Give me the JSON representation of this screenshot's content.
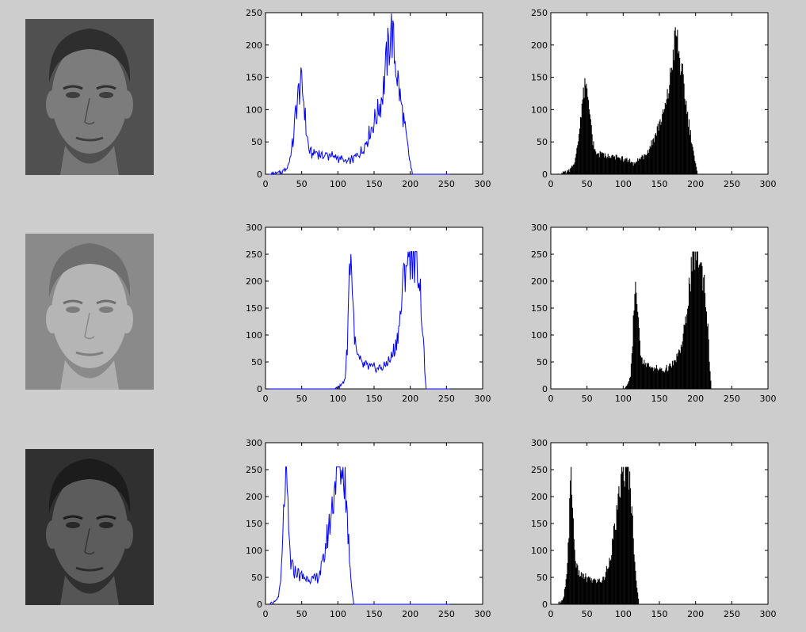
{
  "faces": [
    {
      "name": "face-normal",
      "tone": "#7c7c7c",
      "bg": "#505050",
      "hair": "#2e2e2e"
    },
    {
      "name": "face-bright",
      "tone": "#b5b5b5",
      "bg": "#8a8a8a",
      "hair": "#6e6e6e"
    },
    {
      "name": "face-dark",
      "tone": "#5c5c5c",
      "bg": "#303030",
      "hair": "#1c1c1c"
    }
  ],
  "colors": {
    "line": "#0000ff",
    "bar": "#000000"
  },
  "chart_data": [
    {
      "type": "line",
      "row": 0,
      "col": 0,
      "xlim": [
        0,
        300
      ],
      "ylim": [
        0,
        250
      ],
      "xticks": [
        0,
        50,
        100,
        150,
        200,
        250,
        300
      ],
      "yticks": [
        0,
        50,
        100,
        150,
        200,
        250
      ],
      "peaks": [
        [
          8,
          0
        ],
        [
          15,
          1
        ],
        [
          22,
          3
        ],
        [
          28,
          8
        ],
        [
          33,
          20
        ],
        [
          38,
          50
        ],
        [
          42,
          100
        ],
        [
          46,
          130
        ],
        [
          48,
          140
        ],
        [
          50,
          133
        ],
        [
          53,
          115
        ],
        [
          56,
          70
        ],
        [
          60,
          38
        ],
        [
          64,
          32
        ],
        [
          70,
          33
        ],
        [
          80,
          30
        ],
        [
          90,
          28
        ],
        [
          100,
          26
        ],
        [
          108,
          22
        ],
        [
          114,
          18
        ],
        [
          118,
          22
        ],
        [
          124,
          26
        ],
        [
          130,
          32
        ],
        [
          136,
          42
        ],
        [
          142,
          58
        ],
        [
          148,
          75
        ],
        [
          155,
          95
        ],
        [
          160,
          115
        ],
        [
          164,
          145
        ],
        [
          168,
          180
        ],
        [
          171,
          200
        ],
        [
          173,
          228
        ],
        [
          175,
          215
        ],
        [
          178,
          185
        ],
        [
          182,
          155
        ],
        [
          186,
          120
        ],
        [
          190,
          90
        ],
        [
          194,
          60
        ],
        [
          198,
          32
        ],
        [
          201,
          10
        ],
        [
          203,
          0
        ]
      ],
      "xlabel": "",
      "ylabel": ""
    },
    {
      "type": "bar",
      "row": 0,
      "col": 1,
      "xlim": [
        0,
        300
      ],
      "ylim": [
        0,
        250
      ],
      "xticks": [
        0,
        50,
        100,
        150,
        200,
        250,
        300
      ],
      "yticks": [
        0,
        50,
        100,
        150,
        200,
        250
      ],
      "peaks": [
        [
          8,
          0
        ],
        [
          15,
          1
        ],
        [
          22,
          3
        ],
        [
          28,
          8
        ],
        [
          33,
          20
        ],
        [
          38,
          50
        ],
        [
          42,
          100
        ],
        [
          46,
          128
        ],
        [
          48,
          132
        ],
        [
          50,
          126
        ],
        [
          53,
          110
        ],
        [
          56,
          68
        ],
        [
          60,
          36
        ],
        [
          64,
          30
        ],
        [
          70,
          32
        ],
        [
          80,
          28
        ],
        [
          90,
          26
        ],
        [
          100,
          24
        ],
        [
          108,
          20
        ],
        [
          114,
          16
        ],
        [
          118,
          20
        ],
        [
          124,
          25
        ],
        [
          130,
          30
        ],
        [
          136,
          40
        ],
        [
          142,
          55
        ],
        [
          148,
          72
        ],
        [
          155,
          92
        ],
        [
          160,
          110
        ],
        [
          164,
          140
        ],
        [
          168,
          175
        ],
        [
          171,
          200
        ],
        [
          173,
          218
        ],
        [
          175,
          205
        ],
        [
          178,
          178
        ],
        [
          182,
          148
        ],
        [
          186,
          115
        ],
        [
          190,
          85
        ],
        [
          194,
          55
        ],
        [
          198,
          28
        ],
        [
          201,
          8
        ],
        [
          203,
          0
        ]
      ],
      "xlabel": "",
      "ylabel": ""
    },
    {
      "type": "line",
      "row": 1,
      "col": 0,
      "xlim": [
        0,
        300
      ],
      "ylim": [
        0,
        300
      ],
      "xticks": [
        0,
        50,
        100,
        150,
        200,
        250,
        300
      ],
      "yticks": [
        0,
        50,
        100,
        150,
        200,
        250,
        300
      ],
      "peaks": [
        [
          95,
          0
        ],
        [
          100,
          2
        ],
        [
          105,
          6
        ],
        [
          110,
          20
        ],
        [
          113,
          80
        ],
        [
          115,
          180
        ],
        [
          117,
          255
        ],
        [
          119,
          230
        ],
        [
          121,
          150
        ],
        [
          124,
          80
        ],
        [
          128,
          55
        ],
        [
          135,
          45
        ],
        [
          145,
          40
        ],
        [
          155,
          38
        ],
        [
          165,
          42
        ],
        [
          172,
          55
        ],
        [
          180,
          80
        ],
        [
          186,
          130
        ],
        [
          190,
          190
        ],
        [
          194,
          240
        ],
        [
          197,
          255
        ],
        [
          200,
          255
        ],
        [
          204,
          255
        ],
        [
          208,
          250
        ],
        [
          212,
          220
        ],
        [
          215,
          160
        ],
        [
          218,
          90
        ],
        [
          220,
          35
        ],
        [
          222,
          0
        ]
      ],
      "xlabel": "",
      "ylabel": ""
    },
    {
      "type": "bar",
      "row": 1,
      "col": 1,
      "xlim": [
        0,
        300
      ],
      "ylim": [
        0,
        300
      ],
      "xticks": [
        0,
        50,
        100,
        150,
        200,
        250,
        300
      ],
      "yticks": [
        0,
        50,
        100,
        150,
        200,
        250,
        300
      ],
      "peaks": [
        [
          95,
          0
        ],
        [
          100,
          2
        ],
        [
          105,
          6
        ],
        [
          110,
          20
        ],
        [
          113,
          80
        ],
        [
          115,
          160
        ],
        [
          117,
          195
        ],
        [
          119,
          175
        ],
        [
          121,
          120
        ],
        [
          124,
          70
        ],
        [
          128,
          50
        ],
        [
          135,
          42
        ],
        [
          145,
          38
        ],
        [
          155,
          35
        ],
        [
          165,
          40
        ],
        [
          172,
          52
        ],
        [
          180,
          75
        ],
        [
          186,
          120
        ],
        [
          190,
          175
        ],
        [
          194,
          215
        ],
        [
          197,
          245
        ],
        [
          200,
          255
        ],
        [
          204,
          245
        ],
        [
          208,
          225
        ],
        [
          212,
          200
        ],
        [
          215,
          150
        ],
        [
          218,
          85
        ],
        [
          220,
          30
        ],
        [
          222,
          0
        ]
      ],
      "xlabel": "",
      "ylabel": ""
    },
    {
      "type": "line",
      "row": 2,
      "col": 0,
      "xlim": [
        0,
        300
      ],
      "ylim": [
        0,
        300
      ],
      "xticks": [
        0,
        50,
        100,
        150,
        200,
        250,
        300
      ],
      "yticks": [
        0,
        50,
        100,
        150,
        200,
        250,
        300
      ],
      "peaks": [
        [
          5,
          0
        ],
        [
          10,
          2
        ],
        [
          15,
          6
        ],
        [
          18,
          15
        ],
        [
          21,
          40
        ],
        [
          24,
          120
        ],
        [
          26,
          200
        ],
        [
          28,
          255
        ],
        [
          30,
          200
        ],
        [
          32,
          130
        ],
        [
          35,
          75
        ],
        [
          40,
          60
        ],
        [
          50,
          52
        ],
        [
          60,
          48
        ],
        [
          68,
          45
        ],
        [
          74,
          55
        ],
        [
          80,
          80
        ],
        [
          86,
          130
        ],
        [
          92,
          180
        ],
        [
          96,
          230
        ],
        [
          99,
          255
        ],
        [
          103,
          255
        ],
        [
          107,
          255
        ],
        [
          110,
          230
        ],
        [
          113,
          160
        ],
        [
          116,
          90
        ],
        [
          119,
          35
        ],
        [
          122,
          0
        ]
      ],
      "xlabel": "",
      "ylabel": ""
    },
    {
      "type": "bar",
      "row": 2,
      "col": 1,
      "xlim": [
        0,
        300
      ],
      "ylim": [
        0,
        300
      ],
      "xticks": [
        0,
        50,
        100,
        150,
        200,
        250,
        300
      ],
      "yticks": [
        0,
        50,
        100,
        150,
        200,
        250,
        300
      ],
      "peaks": [
        [
          5,
          0
        ],
        [
          10,
          2
        ],
        [
          15,
          6
        ],
        [
          18,
          15
        ],
        [
          21,
          40
        ],
        [
          24,
          110
        ],
        [
          26,
          175
        ],
        [
          28,
          245
        ],
        [
          30,
          190
        ],
        [
          32,
          120
        ],
        [
          35,
          70
        ],
        [
          40,
          55
        ],
        [
          50,
          48
        ],
        [
          60,
          44
        ],
        [
          68,
          42
        ],
        [
          74,
          50
        ],
        [
          80,
          75
        ],
        [
          86,
          120
        ],
        [
          92,
          170
        ],
        [
          96,
          220
        ],
        [
          99,
          245
        ],
        [
          103,
          255
        ],
        [
          107,
          250
        ],
        [
          110,
          215
        ],
        [
          113,
          150
        ],
        [
          116,
          85
        ],
        [
          119,
          30
        ],
        [
          122,
          0
        ]
      ],
      "xlabel": "",
      "ylabel": ""
    }
  ]
}
